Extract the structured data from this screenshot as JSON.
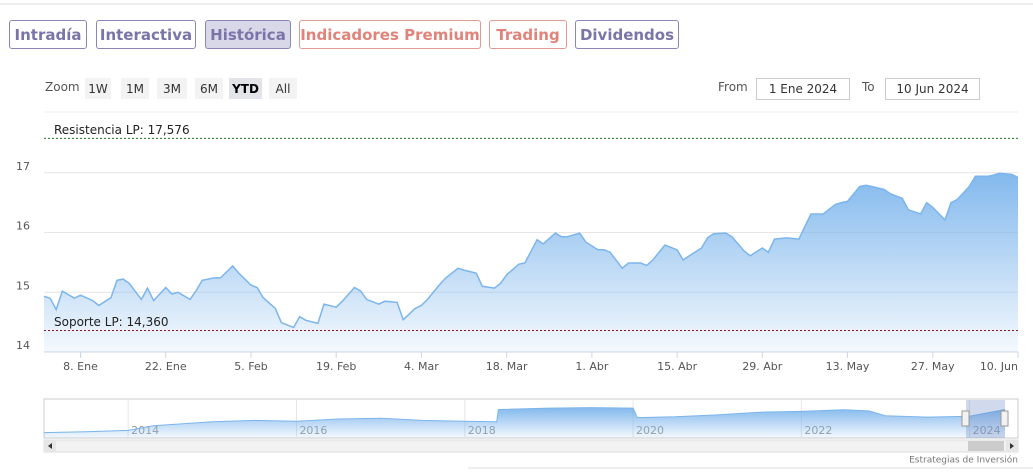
{
  "tabs": [
    "Intradía",
    "Interactiva",
    "Histórica",
    "Indicadores Premium",
    "Trading",
    "Dividendos"
  ],
  "active_tab": 2,
  "zoom": {
    "label": "Zoom",
    "buttons": [
      "1W",
      "1M",
      "3M",
      "6M",
      "YTD",
      "All"
    ],
    "active": 4
  },
  "range": {
    "from_label": "From",
    "from": "1 Ene 2024",
    "to_label": "To",
    "to": "10 Jun 2024"
  },
  "chart_data": {
    "type": "area",
    "color": "#7cb5ec",
    "x": [
      2,
      3,
      4,
      5,
      7,
      8,
      10,
      11,
      13,
      14,
      15,
      16,
      18,
      19,
      20,
      22,
      23,
      24,
      26,
      27,
      28,
      30,
      31,
      33,
      34,
      36,
      37,
      38,
      40,
      41,
      43,
      44,
      45,
      47,
      48,
      50,
      51,
      53,
      54,
      55,
      57,
      58,
      60,
      61,
      63,
      64,
      65,
      67,
      68,
      70,
      71,
      73,
      74,
      76,
      77,
      78,
      80,
      81,
      83,
      84,
      86,
      87,
      88,
      90,
      91,
      93,
      94,
      95,
      97,
      98,
      100,
      101,
      102,
      104,
      106,
      107,
      108,
      110,
      111,
      112,
      114,
      115,
      117,
      118,
      120,
      121,
      122,
      124,
      126,
      127,
      128,
      130,
      132,
      133,
      134,
      136,
      137,
      138,
      140,
      141,
      143,
      144,
      146,
      147,
      148,
      150,
      151,
      152,
      154,
      155,
      157,
      158,
      159,
      161,
      162
    ],
    "values": [
      14.93,
      14.9,
      14.71,
      15.02,
      14.9,
      14.95,
      14.86,
      14.78,
      14.91,
      15.2,
      15.22,
      15.15,
      14.88,
      15.07,
      14.86,
      15.08,
      14.97,
      15.0,
      14.88,
      15.03,
      15.2,
      15.24,
      15.24,
      15.44,
      15.32,
      15.12,
      15.08,
      14.91,
      14.73,
      14.49,
      14.41,
      14.59,
      14.53,
      14.48,
      14.8,
      14.75,
      14.85,
      15.08,
      15.02,
      14.88,
      14.8,
      14.85,
      14.83,
      14.54,
      14.73,
      14.78,
      14.88,
      15.13,
      15.24,
      15.4,
      15.37,
      15.32,
      15.1,
      15.07,
      15.15,
      15.29,
      15.47,
      15.49,
      15.88,
      15.81,
      15.99,
      15.93,
      15.93,
      15.99,
      15.84,
      15.71,
      15.71,
      15.67,
      15.4,
      15.49,
      15.49,
      15.45,
      15.54,
      15.79,
      15.71,
      15.54,
      15.61,
      15.74,
      15.91,
      15.98,
      15.99,
      15.93,
      15.69,
      15.61,
      15.74,
      15.67,
      15.89,
      15.91,
      15.89,
      16.1,
      16.31,
      16.31,
      16.47,
      16.5,
      16.52,
      16.77,
      16.79,
      16.77,
      16.72,
      16.65,
      16.57,
      16.38,
      16.31,
      16.5,
      16.42,
      16.21,
      16.5,
      16.55,
      16.77,
      16.94,
      16.94,
      16.96,
      16.99,
      16.97,
      16.92
    ],
    "xlim": [
      2,
      162
    ],
    "xticks": [
      {
        "value": 8,
        "label": "8. Ene"
      },
      {
        "value": 22,
        "label": "22. Ene"
      },
      {
        "value": 36,
        "label": "5. Feb"
      },
      {
        "value": 50,
        "label": "19. Feb"
      },
      {
        "value": 64,
        "label": "4. Mar"
      },
      {
        "value": 78,
        "label": "18. Mar"
      },
      {
        "value": 92,
        "label": "1. Abr"
      },
      {
        "value": 106,
        "label": "15. Abr"
      },
      {
        "value": 120,
        "label": "29. Abr"
      },
      {
        "value": 134,
        "label": "13. May"
      },
      {
        "value": 148,
        "label": "27. May"
      },
      {
        "value": 162,
        "label": "10. Jun"
      }
    ],
    "ylim": [
      14,
      18
    ],
    "yticks": [
      14,
      15,
      16,
      17
    ],
    "grid": true,
    "plot_lines": [
      {
        "label": "Resistencia LP: 17,576",
        "value": 17.576,
        "color": "#1b7a1b"
      },
      {
        "label": "Soporte LP: 14,360",
        "value": 14.36,
        "color": "#8b1a1a"
      }
    ]
  },
  "navigator": {
    "type": "area",
    "color": "#7cb5ec",
    "x": [
      2013.0,
      2013.5,
      2014.0,
      2014.3,
      2015.0,
      2015.5,
      2016.0,
      2016.5,
      2017.0,
      2017.5,
      2018.0,
      2018.38,
      2018.4,
      2019.0,
      2019.5,
      2020.0,
      2020.05,
      2020.5,
      2021.0,
      2021.5,
      2022.0,
      2022.5,
      2022.8,
      2023.0,
      2023.5,
      2024.0,
      2024.42
    ],
    "values": [
      7,
      7.3,
      7.8,
      9.5,
      11,
      11.5,
      11.2,
      12,
      12.3,
      11.5,
      11.2,
      11,
      15.5,
      16,
      16.2,
      16,
      12.5,
      12.8,
      13.5,
      14.5,
      14.8,
      15.4,
      15,
      13.2,
      12.7,
      13,
      15.5
    ],
    "xlim": [
      2013,
      2024.42
    ],
    "ylim": [
      5,
      19
    ],
    "xticks": [
      2014,
      2016,
      2018,
      2020,
      2022,
      2024
    ]
  },
  "credit": "Estrategias de Inversión"
}
